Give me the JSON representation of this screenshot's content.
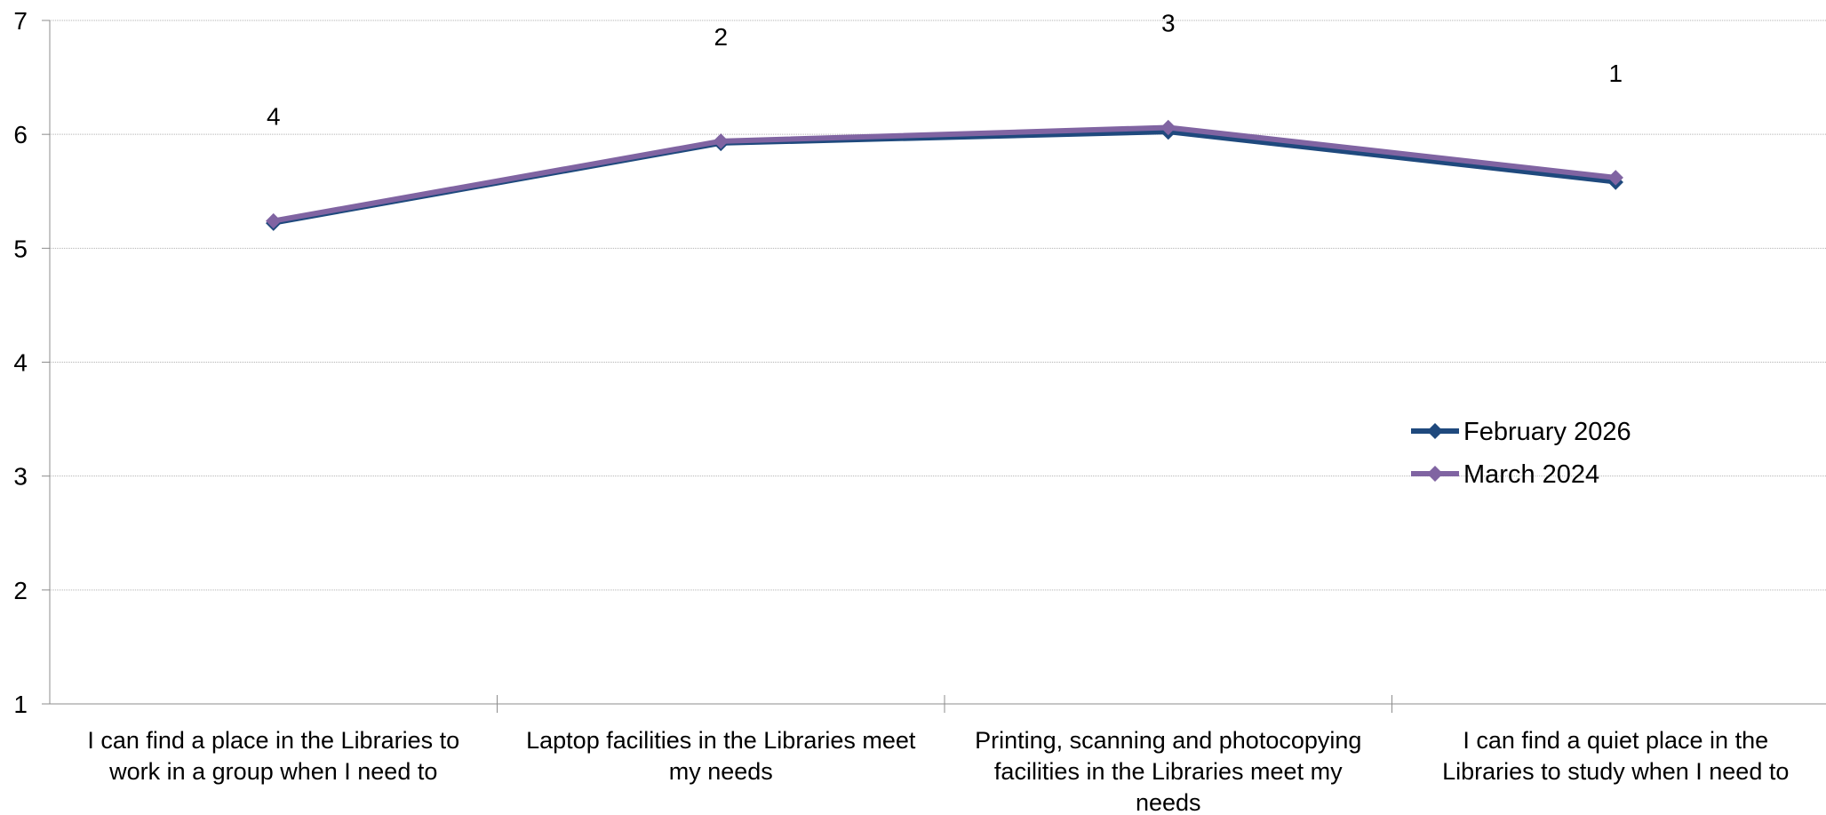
{
  "chart_data": {
    "type": "line",
    "categories": [
      "I can find a place in the Libraries to work in a group when I need to",
      "Laptop facilities in the Libraries meet my needs",
      "Printing, scanning and photocopying facilities in the Libraries meet my needs",
      "I can find a quiet place in the Libraries to study when I need to"
    ],
    "category_lines": [
      [
        "I can find a place in the Libraries to",
        "work in a group when I need to"
      ],
      [
        "Laptop facilities in the Libraries meet",
        "my needs"
      ],
      [
        "Printing, scanning and photocopying",
        "facilities in the Libraries meet my",
        "needs"
      ],
      [
        "I can find a quiet place in the",
        "Libraries to study when I need to"
      ]
    ],
    "series": [
      {
        "name": "February 2026",
        "values": [
          5.22,
          5.92,
          6.02,
          5.58
        ],
        "color": "#1f497d"
      },
      {
        "name": "March 2024",
        "values": [
          5.24,
          5.94,
          6.06,
          5.62
        ],
        "color": "#8064a2"
      }
    ],
    "data_labels": [
      "4",
      "2",
      "3",
      "1"
    ],
    "ylim": [
      1,
      7
    ],
    "yticks": [
      1,
      2,
      3,
      4,
      5,
      6,
      7
    ],
    "grid": true,
    "legend_position": "right",
    "marker": "diamond"
  }
}
